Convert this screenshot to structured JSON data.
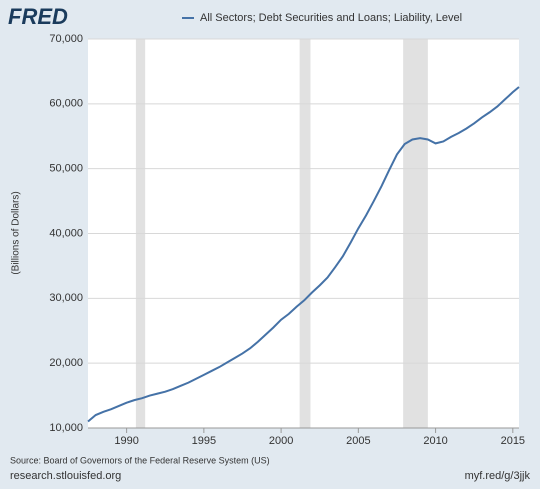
{
  "chart_data": {
    "type": "line",
    "logo": "FRED",
    "ylabel": "(Billions of Dollars)",
    "source": "Source: Board of Governors of the Federal Reserve System (US)",
    "site": "research.stlouisfed.org",
    "short_link": "myf.red/g/3jjk",
    "xlim": [
      1987.5,
      2015.4
    ],
    "ylim": [
      10000,
      70000
    ],
    "xticks": [
      1990,
      1995,
      2000,
      2005,
      2010,
      2015
    ],
    "yticks": [
      {
        "value": 10000,
        "label": "10,000"
      },
      {
        "value": 20000,
        "label": "20,000"
      },
      {
        "value": 30000,
        "label": "30,000"
      },
      {
        "value": 40000,
        "label": "40,000"
      },
      {
        "value": 50000,
        "label": "50,000"
      },
      {
        "value": 60000,
        "label": "60,000"
      },
      {
        "value": 70000,
        "label": "70,000"
      }
    ],
    "grid": true,
    "recessions": [
      [
        1990.6,
        1991.2
      ],
      [
        2001.2,
        2001.9
      ],
      [
        2007.9,
        2009.5
      ]
    ],
    "recession_color": "#e1e1e1",
    "x": [
      1987.5,
      1988,
      1988.5,
      1989,
      1989.5,
      1990,
      1990.5,
      1991,
      1991.5,
      1992,
      1992.5,
      1993,
      1993.5,
      1994,
      1994.5,
      1995,
      1995.5,
      1996,
      1996.5,
      1997,
      1997.5,
      1998,
      1998.5,
      1999,
      1999.5,
      2000,
      2000.5,
      2001,
      2001.5,
      2002,
      2002.5,
      2003,
      2003.5,
      2004,
      2004.5,
      2005,
      2005.5,
      2006,
      2006.5,
      2007,
      2007.5,
      2008,
      2008.5,
      2009,
      2009.5,
      2010,
      2010.5,
      2011,
      2011.5,
      2012,
      2012.5,
      2013,
      2013.5,
      2014,
      2014.5,
      2015,
      2015.4
    ],
    "series": [
      {
        "name": "All Sectors; Debt Securities and Loans; Liability, Level",
        "color": "#4572a7",
        "values": [
          11000,
          12000,
          12500,
          12900,
          13400,
          13900,
          14300,
          14600,
          15000,
          15300,
          15600,
          16000,
          16500,
          17000,
          17600,
          18200,
          18800,
          19400,
          20100,
          20800,
          21500,
          22300,
          23300,
          24400,
          25500,
          26700,
          27600,
          28700,
          29700,
          30900,
          32000,
          33200,
          34800,
          36500,
          38600,
          40800,
          42800,
          45000,
          47300,
          49800,
          52200,
          53800,
          54500,
          54700,
          54500,
          53900,
          54200,
          54900,
          55500,
          56200,
          57000,
          57900,
          58700,
          59600,
          60700,
          61800,
          62600
        ]
      }
    ]
  }
}
